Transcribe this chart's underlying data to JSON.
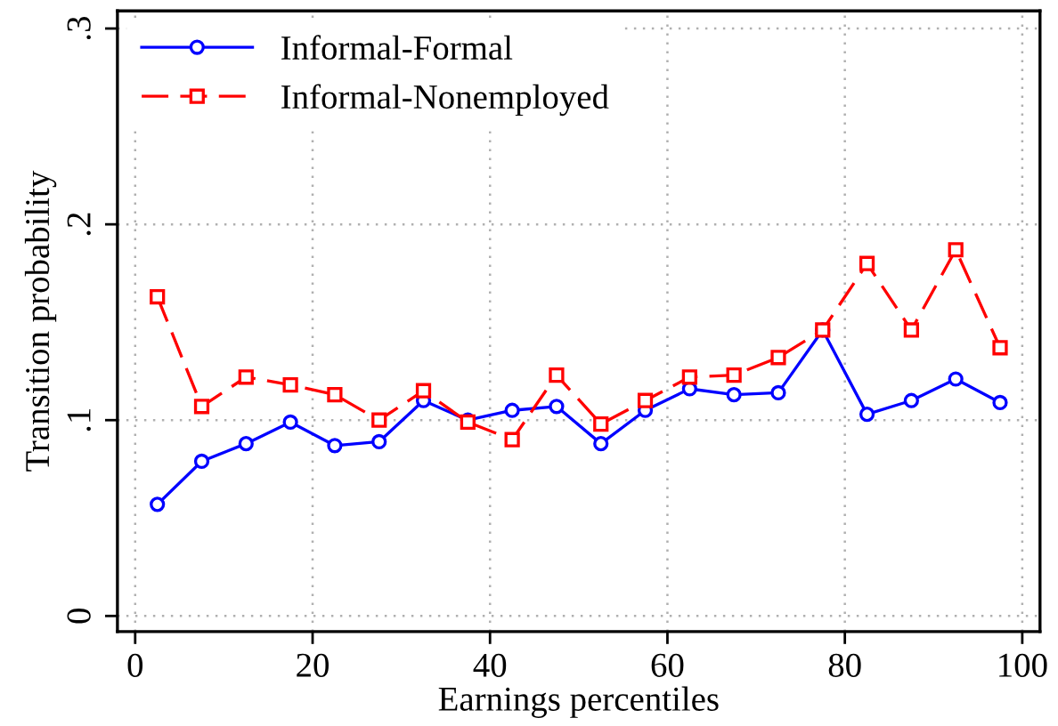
{
  "chart_data": {
    "type": "line",
    "xlabel": "Earnings percentiles",
    "ylabel": "Transition probability",
    "x": [
      2.5,
      7.5,
      12.5,
      17.5,
      22.5,
      27.5,
      32.5,
      37.5,
      42.5,
      47.5,
      52.5,
      57.5,
      62.5,
      67.5,
      72.5,
      77.5,
      82.5,
      87.5,
      92.5,
      97.5
    ],
    "series": [
      {
        "name": "Informal-Formal",
        "color": "#0000ff",
        "marker": "circle",
        "line_style": "solid",
        "values": [
          0.057,
          0.079,
          0.088,
          0.099,
          0.087,
          0.089,
          0.11,
          0.1,
          0.105,
          0.107,
          0.088,
          0.105,
          0.116,
          0.113,
          0.114,
          0.146,
          0.103,
          0.11,
          0.121,
          0.109
        ]
      },
      {
        "name": "Informal-Nonemployed",
        "color": "#ff0000",
        "marker": "square",
        "line_style": "dashed",
        "values": [
          0.163,
          0.107,
          0.122,
          0.118,
          0.113,
          0.1,
          0.115,
          0.099,
          0.09,
          0.123,
          0.098,
          0.11,
          0.122,
          0.123,
          0.132,
          0.146,
          0.18,
          0.146,
          0.187,
          0.137
        ]
      }
    ],
    "xlim": [
      -2,
      102
    ],
    "ylim": [
      -0.008,
      0.309
    ],
    "xticks": [
      0,
      20,
      40,
      60,
      80,
      100
    ],
    "yticks": [
      {
        "value": 0,
        "label": "0"
      },
      {
        "value": 0.1,
        "label": ".1"
      },
      {
        "value": 0.2,
        "label": ".2"
      },
      {
        "value": 0.3,
        "label": ".3"
      }
    ],
    "grid": true,
    "legend": "top left"
  }
}
